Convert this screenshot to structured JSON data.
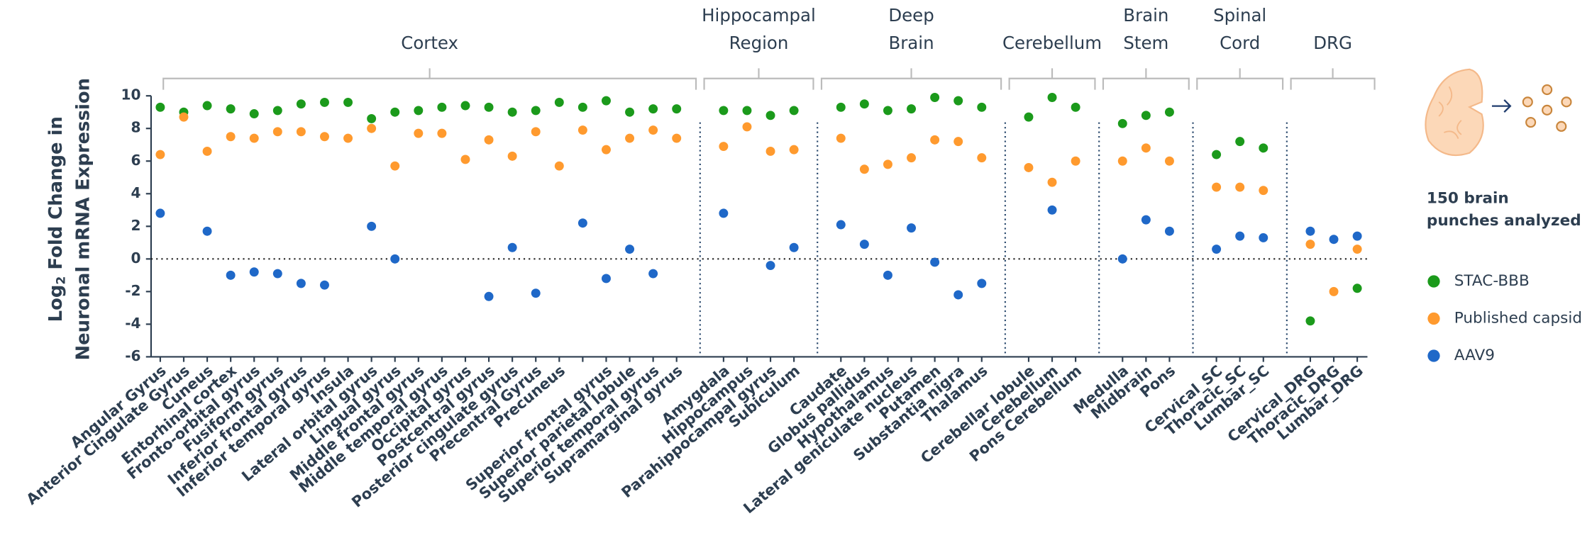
{
  "chart_data": {
    "type": "scatter",
    "ylabel": [
      "Log",
      "2",
      " Fold Change in",
      "Neuronal mRNA Expression"
    ],
    "groups": [
      [
        "Cortex"
      ],
      [
        "Hippocampal",
        "Region"
      ],
      [
        "Deep",
        "Brain"
      ],
      [
        "Cerebellum"
      ],
      [
        "Brain",
        "Stem"
      ],
      [
        "Spinal",
        "Cord"
      ],
      [
        "DRG"
      ]
    ],
    "categories": [
      "Angular Gyrus",
      "Anterior Cingulate Gyrus",
      "Cuneus",
      "Entorhinal cortex",
      "Fronto-orbital gyrus",
      "Fusiform gyrus",
      "Inferior frontal gyrus",
      "Inferior temporal gyrus",
      "Insula",
      "Lateral orbital gyrus",
      "Lingual gyrus",
      "Middle frontal gyrus",
      "Middle temporal gyrus",
      "Occipital gyrus",
      "Postcentral gyrus",
      "Posterior cingulate gyrus",
      "Precentral Gyrus",
      "Precuneus",
      null,
      "Superior frontal gyrus",
      "Superior parietal lobule",
      "Superior temporal gyrus",
      "Supramarginal gyrus",
      null,
      "Amygdala",
      "Hippocampus",
      "Parahippocampal gyrus",
      "Subiculum",
      null,
      "Caudate",
      "Globus pallidus",
      "Hypothalamus",
      "Lateral geniculate nucleus",
      "Putamen",
      "Substantia nigra",
      "Thalamus",
      null,
      "Cerebellar lobule",
      "Cerebellum",
      "Pons Cerebellum",
      null,
      "Medulla",
      "Midbrain",
      "Pons",
      null,
      "Cervical_SC",
      "Thoracic_SC",
      "Lumbar_SC",
      null,
      "Cervical_DRG",
      "Thoracic_DRG",
      "Lumbar_DRG"
    ],
    "series": [
      {
        "name": "STAC-BBB",
        "color": "#1b9a1b",
        "values": [
          9.3,
          9.0,
          9.4,
          9.2,
          8.9,
          9.1,
          9.5,
          9.6,
          9.6,
          8.6,
          9.0,
          9.1,
          9.3,
          9.4,
          9.3,
          9.0,
          9.1,
          9.6,
          9.3,
          9.7,
          9.0,
          9.2,
          9.2,
          null,
          9.1,
          9.1,
          8.8,
          9.1,
          null,
          9.3,
          9.5,
          9.1,
          9.2,
          9.9,
          9.7,
          9.3,
          null,
          8.7,
          9.9,
          9.3,
          null,
          8.3,
          8.8,
          9.0,
          null,
          6.4,
          7.2,
          6.8,
          null,
          -3.8,
          null,
          -1.8
        ]
      },
      {
        "name": "Published capsid",
        "color": "#ff9a2e",
        "values": [
          6.4,
          8.7,
          6.6,
          7.5,
          7.4,
          7.8,
          7.8,
          7.5,
          7.4,
          8.0,
          5.7,
          7.7,
          7.7,
          6.1,
          7.3,
          6.3,
          7.8,
          5.7,
          7.9,
          6.7,
          7.4,
          7.9,
          7.4,
          null,
          6.9,
          8.1,
          6.6,
          6.7,
          null,
          7.4,
          5.5,
          5.8,
          6.2,
          7.3,
          7.2,
          6.2,
          null,
          5.6,
          4.7,
          6.0,
          null,
          6.0,
          6.8,
          6.0,
          null,
          4.4,
          4.4,
          4.2,
          null,
          0.9,
          -2.0,
          0.6
        ]
      },
      {
        "name": "AAV9",
        "color": "#1f68c8",
        "values": [
          2.8,
          null,
          1.7,
          -1.0,
          -0.8,
          -0.9,
          -1.5,
          -1.6,
          null,
          2.0,
          0.0,
          null,
          null,
          null,
          -2.3,
          0.7,
          -2.1,
          null,
          2.2,
          -1.2,
          0.6,
          -0.9,
          null,
          null,
          2.8,
          null,
          -0.4,
          0.7,
          null,
          2.1,
          0.9,
          -1.0,
          1.9,
          -0.2,
          -2.2,
          -1.5,
          null,
          null,
          3.0,
          null,
          null,
          0.0,
          2.4,
          1.7,
          null,
          0.6,
          1.4,
          1.3,
          null,
          1.7,
          1.2,
          1.4
        ]
      }
    ],
    "ylim": [
      -6,
      10
    ],
    "yticks": [
      -6,
      -4,
      -2,
      0,
      2,
      4,
      6,
      8,
      10
    ],
    "note": [
      "150 brain",
      "punches analyzed"
    ]
  }
}
